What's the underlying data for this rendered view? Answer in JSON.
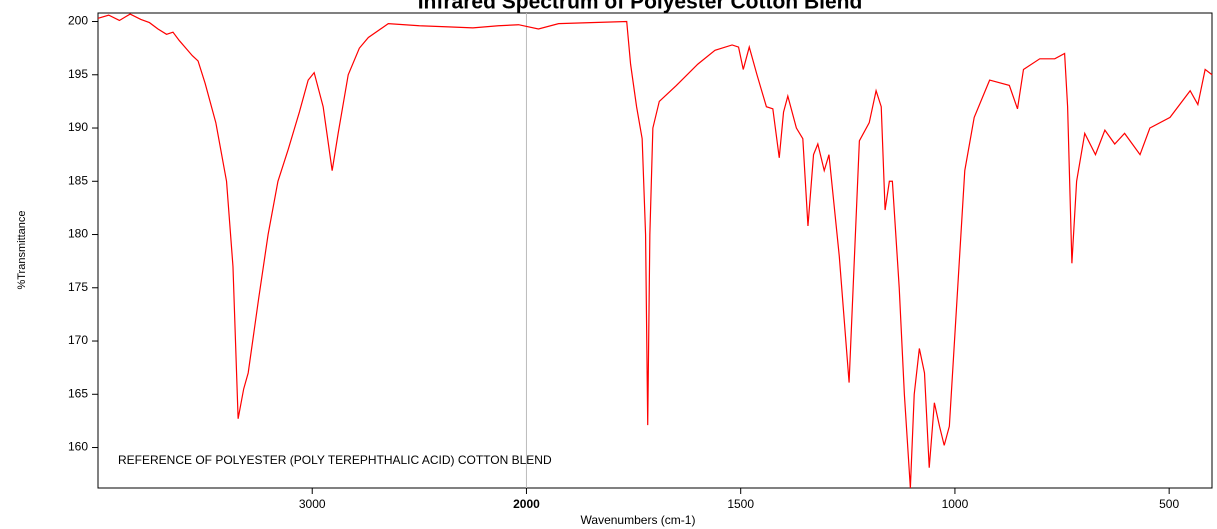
{
  "chart_data": {
    "type": "line",
    "title": "Infrared Spectrum of Polyester Cotton Blend",
    "xlabel": "Wavenumbers (cm-1)",
    "ylabel": "%Transmittance",
    "annotation": "REFERENCE OF POLYESTER (POLY TEREPHTHALIC ACID) COTTON BLEND",
    "xlim": [
      4000,
      400
    ],
    "x_break": 2000,
    "xticks": [
      3000,
      2000,
      1500,
      1000,
      500
    ],
    "ylim": [
      156.2,
      200.8
    ],
    "yticks": [
      160,
      165,
      170,
      175,
      180,
      185,
      190,
      195,
      200
    ],
    "series": [
      {
        "color": "#ff0000",
        "x": [
          4000,
          3950,
          3900,
          3850,
          3800,
          3760,
          3720,
          3680,
          3650,
          3620,
          3590,
          3560,
          3533,
          3500,
          3450,
          3400,
          3370,
          3346,
          3320,
          3299,
          3250,
          3206,
          3160,
          3112,
          3060,
          3019,
          2991,
          2949,
          2907,
          2879,
          2832,
          2780,
          2738,
          2645,
          2500,
          2364,
          2250,
          2131,
          2037,
          1972,
          1925,
          1850,
          1766,
          1757,
          1743,
          1730,
          1722,
          1717,
          1712,
          1705,
          1690,
          1650,
          1600,
          1560,
          1520,
          1505,
          1494,
          1480,
          1462,
          1440,
          1425,
          1410,
          1400,
          1390,
          1370,
          1355,
          1343,
          1330,
          1320,
          1305,
          1294,
          1270,
          1247,
          1223,
          1200,
          1184,
          1172,
          1163,
          1153,
          1146,
          1130,
          1118,
          1104,
          1095,
          1083,
          1071,
          1060,
          1048,
          1036,
          1025,
          1013,
          1001,
          977,
          955,
          919,
          873,
          854,
          840,
          802,
          767,
          744,
          737,
          727,
          716,
          697,
          672,
          650,
          627,
          604,
          568,
          545,
          498,
          451,
          433,
          416,
          400
        ],
        "values": [
          200.3,
          200.6,
          200.1,
          200.7,
          200.2,
          199.9,
          199.3,
          198.8,
          199.0,
          198.2,
          197.5,
          196.8,
          196.3,
          194.2,
          190.5,
          185,
          177,
          162.7,
          165.5,
          167,
          174,
          180,
          185,
          188,
          191.5,
          194.5,
          195.2,
          192,
          186,
          189.5,
          195,
          197.5,
          198.5,
          199.8,
          199.6,
          199.5,
          199.4,
          199.6,
          199.7,
          199.3,
          199.8,
          199.9,
          200,
          196,
          192,
          189,
          180,
          162.1,
          180,
          190,
          192.5,
          194,
          196,
          197.3,
          197.8,
          197.6,
          195.5,
          197.6,
          195,
          192,
          191.8,
          187.2,
          191.5,
          193,
          190,
          189,
          180.8,
          187.5,
          188.5,
          186,
          187.5,
          178,
          166.1,
          188.8,
          190.5,
          193.5,
          192,
          182.3,
          185,
          185,
          175,
          165,
          156.2,
          165,
          169.3,
          167,
          158.1,
          164.2,
          162,
          160.2,
          162,
          170,
          186,
          191,
          194.5,
          194,
          191.8,
          195.5,
          196.5,
          196.5,
          197,
          192,
          177.3,
          185,
          189.5,
          187.5,
          189.8,
          188.5,
          189.5,
          187.5,
          190,
          191,
          193.5,
          192.2,
          195.5,
          195
        ]
      }
    ]
  }
}
